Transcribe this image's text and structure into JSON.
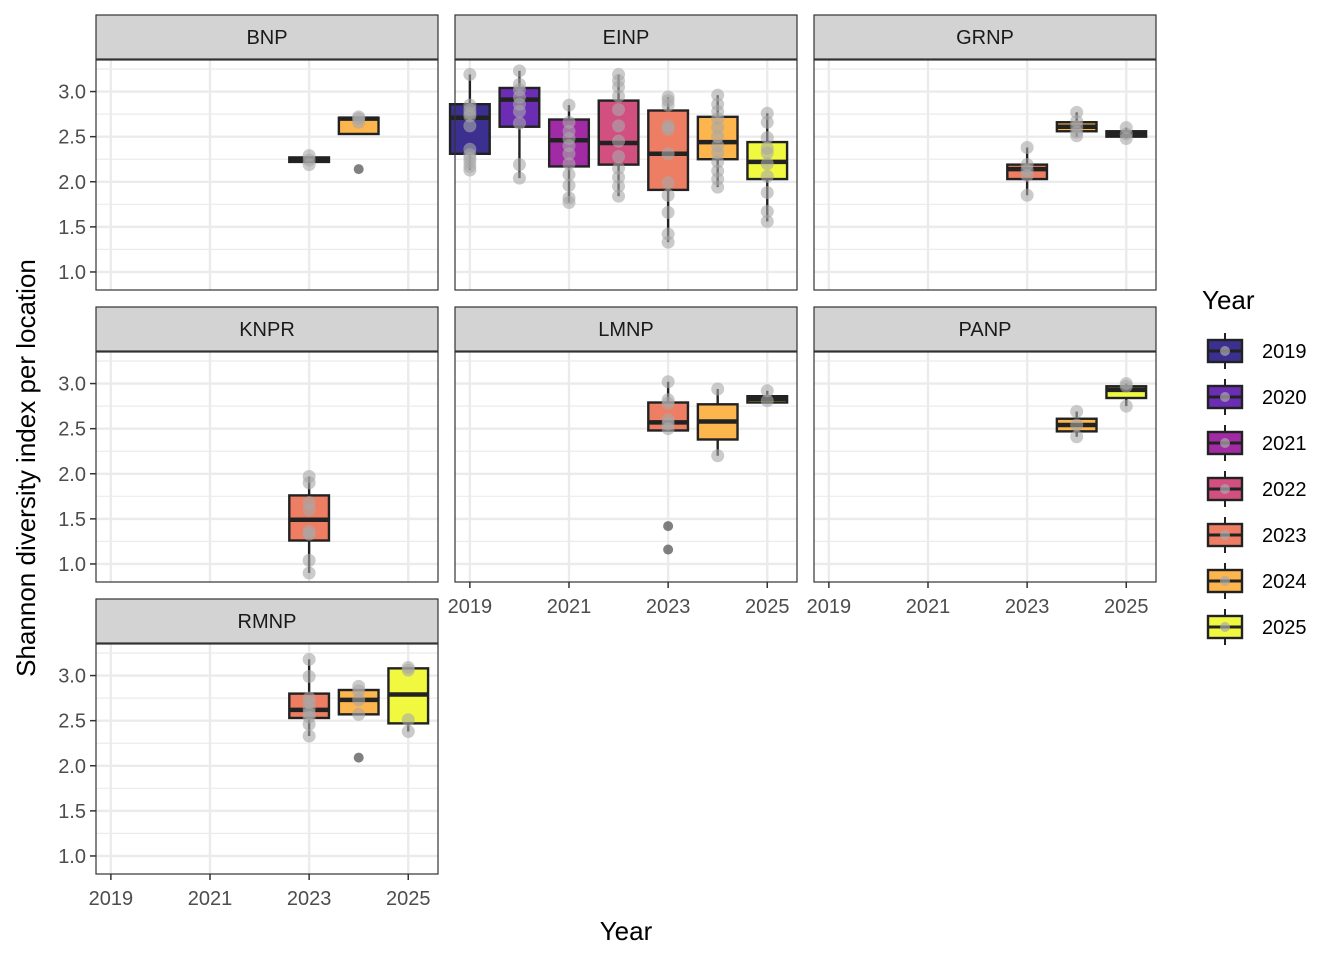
{
  "chart_data": {
    "type": "box",
    "title": "",
    "xlabel": "Year",
    "ylabel": "Shannon diversity index per location",
    "x_ticks": [
      "2019",
      "2021",
      "2023",
      "2025"
    ],
    "y_ticks": [
      "1.0",
      "1.5",
      "2.0",
      "2.5",
      "3.0"
    ],
    "xlim": [
      2018.7,
      2025.6
    ],
    "ylim": [
      0.8,
      3.35
    ],
    "grid": true,
    "legend": {
      "title": "Year",
      "position": "right",
      "entries": [
        {
          "label": "2019",
          "color": "#3B2F8F"
        },
        {
          "label": "2020",
          "color": "#6A2DB3"
        },
        {
          "label": "2021",
          "color": "#A12BA5"
        },
        {
          "label": "2022",
          "color": "#D1507F"
        },
        {
          "label": "2023",
          "color": "#EE7E63"
        },
        {
          "label": "2024",
          "color": "#FDB54E"
        },
        {
          "label": "2025",
          "color": "#F0F940"
        }
      ]
    },
    "facets": [
      {
        "name": "BNP",
        "boxes": [
          {
            "year": 2023,
            "q1": 2.22,
            "median": 2.24,
            "q3": 2.27,
            "whisker_low": 2.22,
            "whisker_high": 2.27,
            "points": [
              2.19,
              2.24,
              2.29
            ],
            "outliers": []
          },
          {
            "year": 2024,
            "q1": 2.53,
            "median": 2.7,
            "q3": 2.71,
            "whisker_low": 2.53,
            "whisker_high": 2.71,
            "points": [
              2.66,
              2.7,
              2.72
            ],
            "outliers": [
              2.14
            ]
          }
        ]
      },
      {
        "name": "EINP",
        "boxes": [
          {
            "year": 2019,
            "q1": 2.31,
            "median": 2.71,
            "q3": 2.86,
            "whisker_low": 2.13,
            "whisker_high": 3.19,
            "points": [
              3.19,
              2.85,
              2.8,
              2.76,
              2.73,
              2.62,
              2.36,
              2.3,
              2.26,
              2.22,
              2.17,
              2.13
            ],
            "outliers": []
          },
          {
            "year": 2020,
            "q1": 2.61,
            "median": 2.91,
            "q3": 3.04,
            "whisker_low": 2.04,
            "whisker_high": 3.23,
            "points": [
              3.23,
              3.08,
              3.02,
              2.94,
              2.86,
              2.78,
              2.65,
              2.19,
              2.04
            ],
            "outliers": []
          },
          {
            "year": 2021,
            "q1": 2.17,
            "median": 2.46,
            "q3": 2.69,
            "whisker_low": 1.77,
            "whisker_high": 2.85,
            "points": [
              2.85,
              2.66,
              2.56,
              2.48,
              2.4,
              2.31,
              2.2,
              2.08,
              1.96,
              1.82,
              1.77
            ],
            "outliers": []
          },
          {
            "year": 2022,
            "q1": 2.19,
            "median": 2.43,
            "q3": 2.9,
            "whisker_low": 1.84,
            "whisker_high": 3.19,
            "points": [
              3.19,
              3.12,
              3.05,
              2.95,
              2.8,
              2.62,
              2.45,
              2.28,
              2.15,
              2.05,
              1.95,
              1.84
            ],
            "outliers": []
          },
          {
            "year": 2023,
            "q1": 1.91,
            "median": 2.31,
            "q3": 2.79,
            "whisker_low": 1.33,
            "whisker_high": 2.94,
            "points": [
              2.94,
              2.9,
              2.85,
              2.62,
              2.58,
              2.31,
              1.99,
              1.85,
              1.66,
              1.42,
              1.33
            ],
            "outliers": []
          },
          {
            "year": 2024,
            "q1": 2.25,
            "median": 2.44,
            "q3": 2.72,
            "whisker_low": 1.94,
            "whisker_high": 2.96,
            "points": [
              2.96,
              2.86,
              2.78,
              2.7,
              2.6,
              2.5,
              2.4,
              2.32,
              2.22,
              2.12,
              2.03,
              1.94
            ],
            "outliers": []
          },
          {
            "year": 2025,
            "q1": 2.03,
            "median": 2.22,
            "q3": 2.44,
            "whisker_low": 1.56,
            "whisker_high": 2.76,
            "points": [
              2.76,
              2.66,
              2.49,
              2.37,
              2.32,
              2.2,
              2.06,
              1.88,
              1.67,
              1.56
            ],
            "outliers": []
          }
        ]
      },
      {
        "name": "GRNP",
        "boxes": [
          {
            "year": 2023,
            "q1": 2.03,
            "median": 2.14,
            "q3": 2.19,
            "whisker_low": 1.85,
            "whisker_high": 2.38,
            "points": [
              2.38,
              2.19,
              2.13,
              2.07,
              1.85
            ],
            "outliers": []
          },
          {
            "year": 2024,
            "q1": 2.56,
            "median": 2.61,
            "q3": 2.66,
            "whisker_low": 2.5,
            "whisker_high": 2.77,
            "points": [
              2.77,
              2.67,
              2.61,
              2.55,
              2.51
            ],
            "outliers": []
          },
          {
            "year": 2025,
            "q1": 2.5,
            "median": 2.53,
            "q3": 2.56,
            "whisker_low": 2.48,
            "whisker_high": 2.6,
            "points": [
              2.6,
              2.53,
              2.48
            ],
            "outliers": []
          }
        ]
      },
      {
        "name": "KNPR",
        "boxes": [
          {
            "year": 2023,
            "q1": 1.26,
            "median": 1.49,
            "q3": 1.76,
            "whisker_low": 0.9,
            "whisker_high": 1.97,
            "points": [
              1.97,
              1.9,
              1.68,
              1.6,
              1.36,
              1.33,
              1.04,
              0.9
            ],
            "outliers": []
          }
        ]
      },
      {
        "name": "LMNP",
        "boxes": [
          {
            "year": 2023,
            "q1": 2.48,
            "median": 2.57,
            "q3": 2.79,
            "whisker_low": 2.48,
            "whisker_high": 3.02,
            "points": [
              3.02,
              2.82,
              2.78,
              2.6,
              2.55,
              2.5
            ],
            "outliers": [
              1.42,
              1.16
            ]
          },
          {
            "year": 2024,
            "q1": 2.38,
            "median": 2.58,
            "q3": 2.77,
            "whisker_low": 2.2,
            "whisker_high": 2.94,
            "points": [
              2.94,
              2.2
            ],
            "outliers": []
          },
          {
            "year": 2025,
            "q1": 2.79,
            "median": 2.83,
            "q3": 2.86,
            "whisker_low": 2.79,
            "whisker_high": 2.92,
            "points": [
              2.92,
              2.81
            ],
            "outliers": []
          }
        ]
      },
      {
        "name": "PANP",
        "boxes": [
          {
            "year": 2024,
            "q1": 2.47,
            "median": 2.54,
            "q3": 2.61,
            "whisker_low": 2.41,
            "whisker_high": 2.69,
            "points": [
              2.69,
              2.54,
              2.41
            ],
            "outliers": []
          },
          {
            "year": 2025,
            "q1": 2.84,
            "median": 2.93,
            "q3": 2.97,
            "whisker_low": 2.75,
            "whisker_high": 3.0,
            "points": [
              3.0,
              2.97,
              2.75
            ],
            "outliers": []
          }
        ]
      },
      {
        "name": "RMNP",
        "boxes": [
          {
            "year": 2023,
            "q1": 2.53,
            "median": 2.62,
            "q3": 2.8,
            "whisker_low": 2.33,
            "whisker_high": 3.18,
            "points": [
              3.18,
              2.99,
              2.75,
              2.7,
              2.63,
              2.58,
              2.54,
              2.46,
              2.33
            ],
            "outliers": []
          },
          {
            "year": 2024,
            "q1": 2.57,
            "median": 2.73,
            "q3": 2.84,
            "whisker_low": 2.57,
            "whisker_high": 2.84,
            "points": [
              2.88,
              2.83,
              2.73,
              2.57
            ],
            "outliers": [
              2.09
            ]
          },
          {
            "year": 2025,
            "q1": 2.47,
            "median": 2.79,
            "q3": 3.08,
            "whisker_low": 2.38,
            "whisker_high": 3.08,
            "points": [
              3.09,
              3.06,
              2.51,
              2.38
            ],
            "outliers": []
          }
        ]
      }
    ]
  }
}
